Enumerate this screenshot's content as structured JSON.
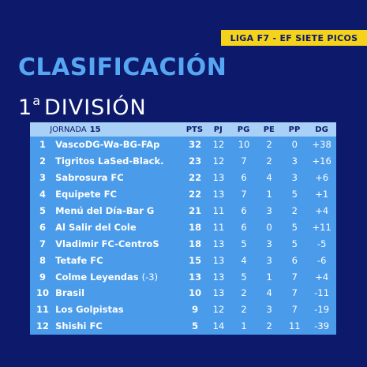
{
  "league": "LIGA F7 - EF SIETE PICOS",
  "title": "CLASIFICACIÓN",
  "division_num": "1",
  "division_sup": "a",
  "division_label": "DIVISIÓN",
  "table": {
    "jornada_label": "JORNADA",
    "jornada_num": "15",
    "headers": {
      "pts": "PTS",
      "pj": "PJ",
      "pg": "PG",
      "pe": "PE",
      "pp": "PP",
      "dg": "DG"
    },
    "rows": [
      {
        "pos": "1",
        "team": "VascoDG-Wa-BG-FAp",
        "penalty": "",
        "pts": "32",
        "pj": "12",
        "pg": "10",
        "pe": "2",
        "pp": "0",
        "dg": "+38"
      },
      {
        "pos": "2",
        "team": "Tigritos LaSed-Black.",
        "penalty": "",
        "pts": "23",
        "pj": "12",
        "pg": "7",
        "pe": "2",
        "pp": "3",
        "dg": "+16"
      },
      {
        "pos": "3",
        "team": "Sabrosura FC",
        "penalty": "",
        "pts": "22",
        "pj": "13",
        "pg": "6",
        "pe": "4",
        "pp": "3",
        "dg": "+6"
      },
      {
        "pos": "4",
        "team": "Equipete FC",
        "penalty": "",
        "pts": "22",
        "pj": "13",
        "pg": "7",
        "pe": "1",
        "pp": "5",
        "dg": "+1"
      },
      {
        "pos": "5",
        "team": "Menú del Día-Bar G",
        "penalty": "",
        "pts": "21",
        "pj": "11",
        "pg": "6",
        "pe": "3",
        "pp": "2",
        "dg": "+4"
      },
      {
        "pos": "6",
        "team": "Al Salir del Cole",
        "penalty": "",
        "pts": "18",
        "pj": "11",
        "pg": "6",
        "pe": "0",
        "pp": "5",
        "dg": "+11"
      },
      {
        "pos": "7",
        "team": "Vladimir FC-CentroS",
        "penalty": "",
        "pts": "18",
        "pj": "13",
        "pg": "5",
        "pe": "3",
        "pp": "5",
        "dg": "-5"
      },
      {
        "pos": "8",
        "team": "Tetafe FC",
        "penalty": "",
        "pts": "15",
        "pj": "13",
        "pg": "4",
        "pe": "3",
        "pp": "6",
        "dg": "-6"
      },
      {
        "pos": "9",
        "team": "Colme Leyendas",
        "penalty": "(-3)",
        "pts": "13",
        "pj": "13",
        "pg": "5",
        "pe": "1",
        "pp": "7",
        "dg": "+4"
      },
      {
        "pos": "10",
        "team": "Brasil",
        "penalty": "",
        "pts": "10",
        "pj": "13",
        "pg": "2",
        "pe": "4",
        "pp": "7",
        "dg": "-11"
      },
      {
        "pos": "11",
        "team": "Los Golpistas",
        "penalty": "",
        "pts": "9",
        "pj": "12",
        "pg": "2",
        "pe": "3",
        "pp": "7",
        "dg": "-19"
      },
      {
        "pos": "12",
        "team": "Shishi FC",
        "penalty": "",
        "pts": "5",
        "pj": "14",
        "pg": "1",
        "pe": "2",
        "pp": "11",
        "dg": "-39"
      }
    ]
  }
}
